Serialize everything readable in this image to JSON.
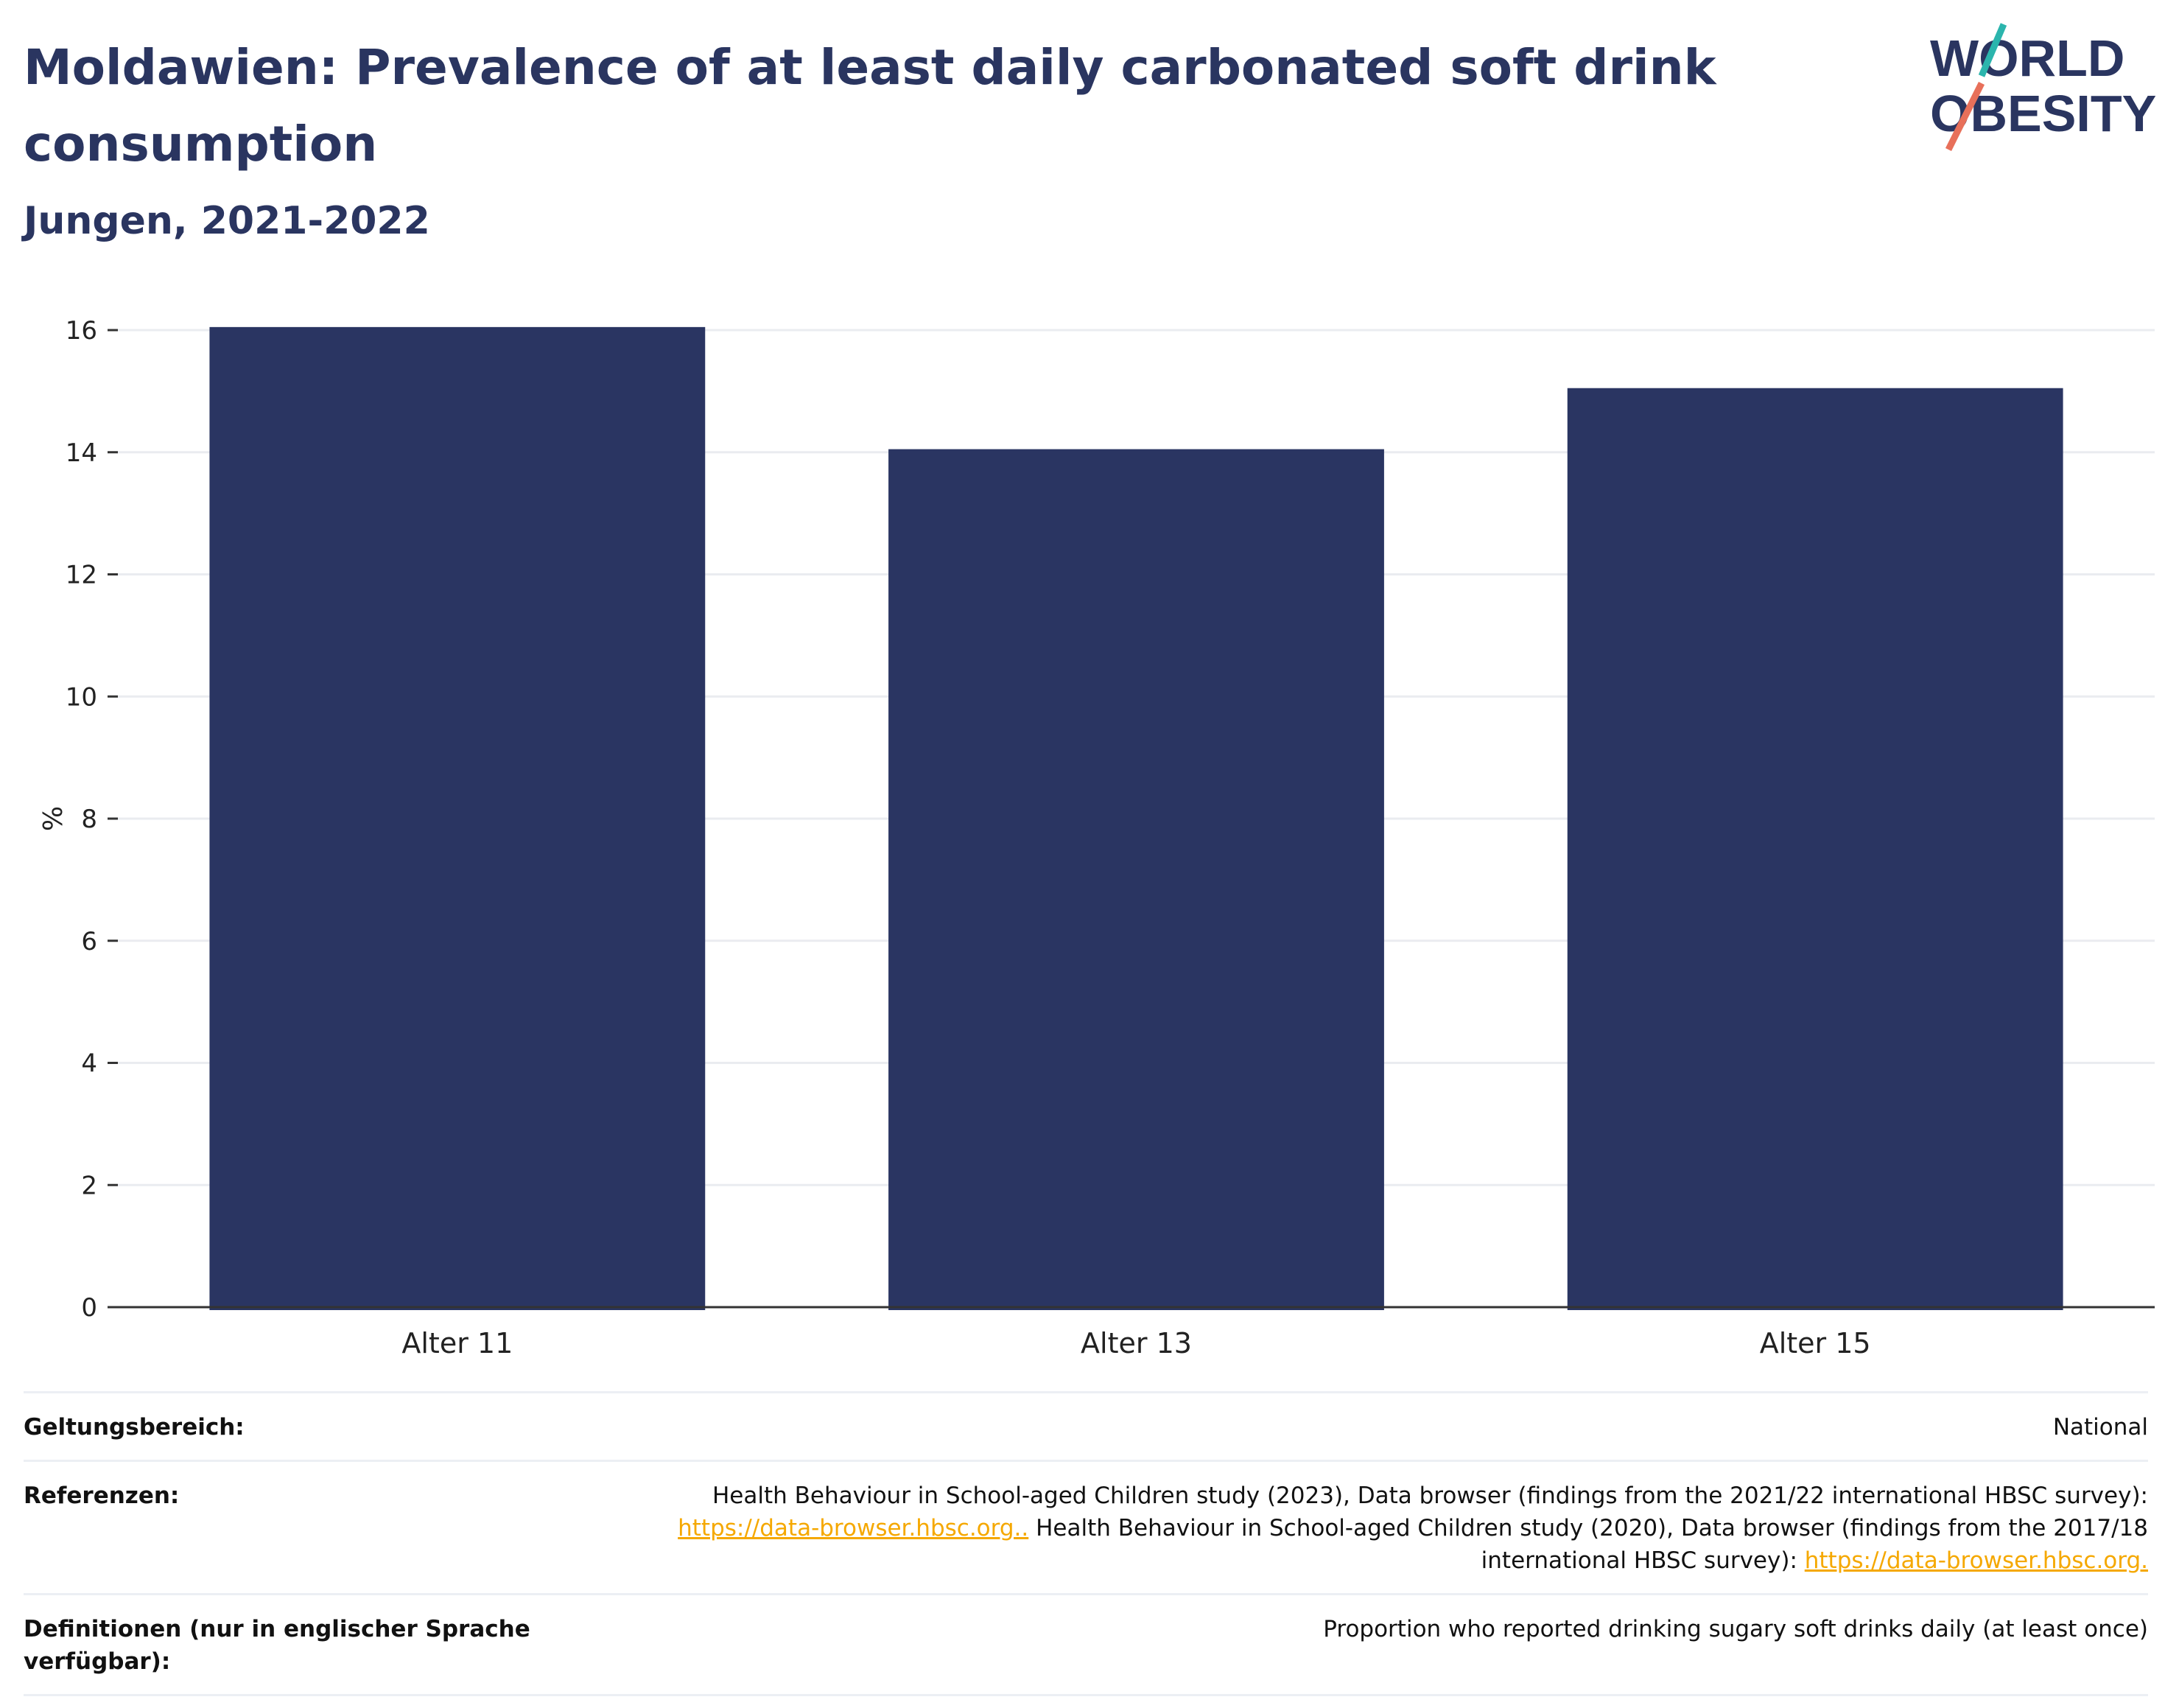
{
  "header": {
    "title": "Moldawien: Prevalence of at least daily carbonated soft drink consumption",
    "subtitle": "Jungen, 2021-2022",
    "logo_line1": "WORLD",
    "logo_line2": "OBESITY"
  },
  "chart_data": {
    "type": "bar",
    "categories": [
      "Alter 11",
      "Alter 13",
      "Alter 15"
    ],
    "values": [
      16.05,
      14.05,
      15.05
    ],
    "ylabel": "%",
    "ylim": [
      0,
      16.6
    ],
    "yticks": [
      0,
      2,
      4,
      6,
      8,
      10,
      12,
      14,
      16
    ],
    "grid": true,
    "bar_color": "#2a3562"
  },
  "info": {
    "scope_label": "Geltungsbereich:",
    "scope_value": "National",
    "refs_label": "Referenzen:",
    "refs_text_1": "Health Behaviour in School-aged Children study (2023), Data browser (findings from the 2021/22 international HBSC survey):",
    "refs_link_1": "https://data-browser.hbsc.org..",
    "refs_text_2": " Health Behaviour in School-aged Children study (2020), Data browser (findings from the 2017/18",
    "refs_text_3": "international HBSC survey): ",
    "refs_link_2": "https://data-browser.hbsc.org.",
    "def_label": "Definitionen (nur in englischer Sprache verfügbar):",
    "def_value": "Proportion who reported drinking sugary soft drinks daily (at least once)"
  },
  "colors": {
    "accent_teal": "#2bb5ad",
    "accent_coral": "#e8705a",
    "link": "#f5a800"
  }
}
